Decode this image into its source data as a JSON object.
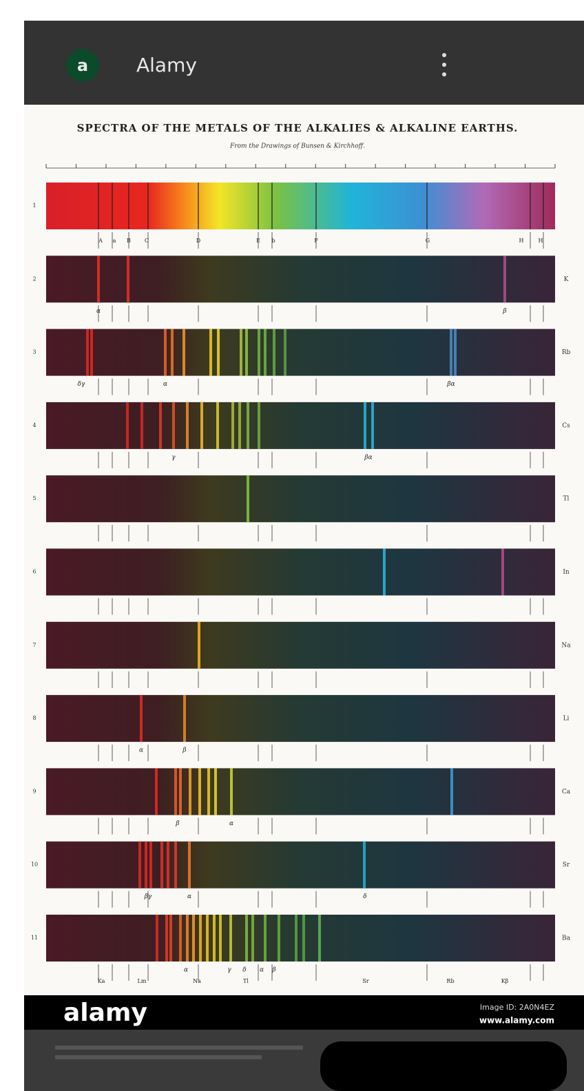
{
  "header": {
    "icon_letter": "a",
    "app_name": "Alamy"
  },
  "image": {
    "title": "SPECTRA OF THE METALS OF THE ALKALIES & ALKALINE EARTHS.",
    "subtitle": "From the Drawings of Bunsen & Kirchhoff.",
    "fraunhofer_labels": [
      "A",
      "a",
      "B",
      "C",
      "D",
      "E",
      "b",
      "F",
      "G",
      "H",
      "H"
    ],
    "rows": [
      {
        "number": "1"
      },
      {
        "number": "2",
        "element": "K",
        "line_labels": [
          "α",
          "β"
        ]
      },
      {
        "number": "3",
        "element": "Rb",
        "line_labels": [
          "δγ",
          "α",
          "βα"
        ]
      },
      {
        "number": "4",
        "element": "Cs",
        "line_labels": [
          "γ",
          "βα"
        ]
      },
      {
        "number": "5",
        "element": "Tl"
      },
      {
        "number": "6",
        "element": "In"
      },
      {
        "number": "7",
        "element": "Na"
      },
      {
        "number": "8",
        "element": "Li",
        "line_labels": [
          "α",
          "β"
        ]
      },
      {
        "number": "9",
        "element": "Ca",
        "line_labels": [
          "β",
          "α"
        ]
      },
      {
        "number": "10",
        "element": "Sr",
        "line_labels": [
          "βγ",
          "α",
          "δ"
        ]
      },
      {
        "number": "11",
        "element": "Ba",
        "line_labels": [
          "α",
          "γ",
          "δ",
          "α",
          "β"
        ]
      }
    ],
    "bottom_labels": [
      "Ka",
      "Lm",
      "Na",
      "Tl",
      "Sr",
      "Rb",
      "Kβ"
    ]
  },
  "footer": {
    "brand": "alamy",
    "image_id": "Image ID: 2A0N4EZ",
    "url": "www.alamy.com"
  }
}
